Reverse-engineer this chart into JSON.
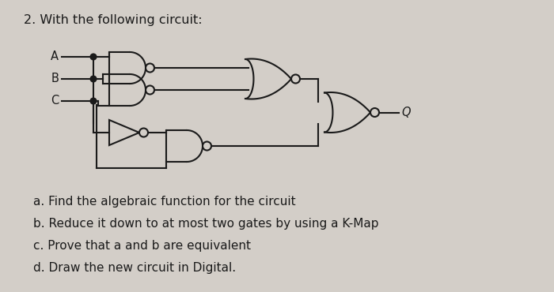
{
  "title": "2. With the following circuit:",
  "bg_color": "#d3cec8",
  "text_color": "#1a1a1a",
  "title_fontsize": 11.5,
  "label_fontsize": 10.5,
  "items_fontsize": 11,
  "items": [
    "a. Find the algebraic function for the circuit",
    "b. Reduce it down to at most two gates by using a K-Map",
    "c. Prove that a and b are equivalent",
    "d. Draw the new circuit in Digital."
  ],
  "input_labels": [
    "A",
    "B",
    "C"
  ],
  "output_label": "Q"
}
